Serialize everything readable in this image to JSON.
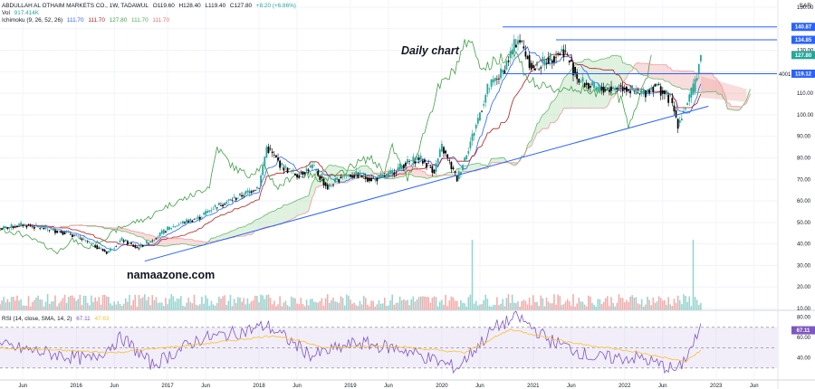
{
  "header": {
    "symbol_line": "ABDULLAH AL OTHAIM MARKETS CO., 1W, TADAWUL",
    "ohlc": {
      "open": "O119.60",
      "high": "H128.40",
      "low": "L119.40",
      "close": "C127.80",
      "change": "+8.20 (+6.86%)"
    },
    "volume": {
      "label": "Vol",
      "value": "917.414K"
    },
    "ichimoku": {
      "label": "Ichimoku (9, 26, 52, 26)",
      "values": [
        "111.70",
        "111.70",
        "127.80",
        "111.70",
        "111.70"
      ]
    },
    "currency": "SAR"
  },
  "annotations": {
    "title": "Daily chart",
    "brand": "namaazone.com",
    "side_value": "4001"
  },
  "rsi_header": {
    "label": "RSI (14, close, SMA, 14, 2)",
    "rsi": "67.11",
    "sma": "47.63"
  },
  "colors": {
    "up": "#26a69a",
    "down": "#000000",
    "tenkan": "#2962ff",
    "kijun": "#b71c1c",
    "chikou": "#43a047",
    "cloud_bull": "#a5d6a7",
    "cloud_bear": "#ef9a9a",
    "line": "#2962ff",
    "rsi": "#7e57c2",
    "rsi_ma": "#fbc02d",
    "vol_up": "#80cbc4",
    "vol_down": "#ef9a9a"
  },
  "chart_data": [
    {
      "type": "candlestick",
      "title": "ABDULLAH AL OTHAIM MARKETS CO., 1W, TADAWUL",
      "period": "1W",
      "y_axis_ticks": [
        150,
        140,
        130,
        120,
        110,
        100,
        90,
        80,
        70,
        60,
        50,
        40,
        30,
        20,
        10
      ],
      "ylim": [
        10,
        150
      ],
      "x_axis_ticks": [
        "Jun",
        "2016",
        "Jun",
        "2017",
        "Jun",
        "2018",
        "Jun",
        "2019",
        "Jun",
        "2020",
        "Jun",
        "2021",
        "Jun",
        "2022",
        "Jun",
        "2023",
        "Jun"
      ],
      "x_range": [
        "2015-03",
        "2023-09"
      ],
      "price_labels": [
        {
          "value": 140.87,
          "label": "140.87",
          "color": "#2962ff"
        },
        {
          "value": 134.85,
          "label": "134.85",
          "color": "#2962ff"
        },
        {
          "value": 127.8,
          "label": "127.80",
          "color": "#26a69a"
        },
        {
          "value": 119.12,
          "label": "119.12",
          "color": "#2962ff"
        }
      ],
      "horizontal_levels": [
        {
          "value": 140.87,
          "from": "2020-09",
          "to": "2023-09"
        },
        {
          "value": 134.85,
          "from": "2021-04",
          "to": "2023-09"
        },
        {
          "value": 119.12,
          "from": "2020-09",
          "to": "2023-09"
        }
      ],
      "trendline": {
        "points": [
          [
            "2016-10",
            32
          ],
          [
            "2022-12",
            104
          ]
        ]
      },
      "close_anchors": [
        [
          "2015-03",
          47
        ],
        [
          "2015-06",
          49
        ],
        [
          "2015-09",
          47
        ],
        [
          "2015-12",
          45
        ],
        [
          "2016-03",
          40
        ],
        [
          "2016-05",
          36
        ],
        [
          "2016-07",
          42
        ],
        [
          "2016-09",
          38
        ],
        [
          "2016-11",
          42
        ],
        [
          "2017-01",
          47
        ],
        [
          "2017-03",
          50
        ],
        [
          "2017-05",
          52
        ],
        [
          "2017-07",
          57
        ],
        [
          "2017-09",
          60
        ],
        [
          "2017-11",
          63
        ],
        [
          "2018-01",
          67
        ],
        [
          "2018-02",
          85
        ],
        [
          "2018-04",
          76
        ],
        [
          "2018-06",
          72
        ],
        [
          "2018-08",
          76
        ],
        [
          "2018-10",
          66
        ],
        [
          "2018-12",
          72
        ],
        [
          "2019-02",
          72
        ],
        [
          "2019-04",
          70
        ],
        [
          "2019-06",
          72
        ],
        [
          "2019-08",
          77
        ],
        [
          "2019-10",
          80
        ],
        [
          "2019-12",
          74
        ],
        [
          "2020-01",
          85
        ],
        [
          "2020-03",
          70
        ],
        [
          "2020-05",
          90
        ],
        [
          "2020-07",
          112
        ],
        [
          "2020-09",
          120
        ],
        [
          "2020-11",
          136
        ],
        [
          "2021-01",
          121
        ],
        [
          "2021-03",
          126
        ],
        [
          "2021-05",
          130
        ],
        [
          "2021-07",
          116
        ],
        [
          "2021-09",
          112
        ],
        [
          "2021-11",
          112
        ],
        [
          "2022-01",
          113
        ],
        [
          "2022-03",
          109
        ],
        [
          "2022-05",
          114
        ],
        [
          "2022-07",
          107
        ],
        [
          "2022-08",
          96
        ],
        [
          "2022-10",
          112
        ],
        [
          "2022-11",
          127.8
        ]
      ],
      "volume_spikes": [
        {
          "date": "2020-05",
          "value": "high"
        },
        {
          "date": "2022-10",
          "value": "high"
        }
      ]
    },
    {
      "type": "line",
      "title": "RSI (14, close, SMA, 14, 2)",
      "y_axis_ticks": [
        80,
        60,
        40
      ],
      "ylim": [
        20,
        85
      ],
      "bands": [
        70,
        50,
        30
      ],
      "series": [
        {
          "name": "RSI",
          "values_anchor": [
            [
              "2015-03",
              52
            ],
            [
              "2016-03",
              38
            ],
            [
              "2016-07",
              60
            ],
            [
              "2016-11",
              33
            ],
            [
              "2017-05",
              58
            ],
            [
              "2017-11",
              66
            ],
            [
              "2018-02",
              72
            ],
            [
              "2018-08",
              42
            ],
            [
              "2019-02",
              55
            ],
            [
              "2019-08",
              48
            ],
            [
              "2020-03",
              30
            ],
            [
              "2020-08",
              70
            ],
            [
              "2020-11",
              80
            ],
            [
              "2021-03",
              58
            ],
            [
              "2021-09",
              40
            ],
            [
              "2022-03",
              40
            ],
            [
              "2022-08",
              27
            ],
            [
              "2022-11",
              67.11
            ]
          ]
        },
        {
          "name": "SMA",
          "values_anchor": [
            [
              "2015-03",
              50
            ],
            [
              "2016-06",
              45
            ],
            [
              "2017-06",
              54
            ],
            [
              "2018-03",
              62
            ],
            [
              "2018-10",
              50
            ],
            [
              "2019-06",
              52
            ],
            [
              "2020-04",
              45
            ],
            [
              "2020-10",
              68
            ],
            [
              "2021-06",
              55
            ],
            [
              "2022-03",
              45
            ],
            [
              "2022-09",
              36
            ],
            [
              "2022-11",
              47.63
            ]
          ]
        }
      ]
    }
  ]
}
